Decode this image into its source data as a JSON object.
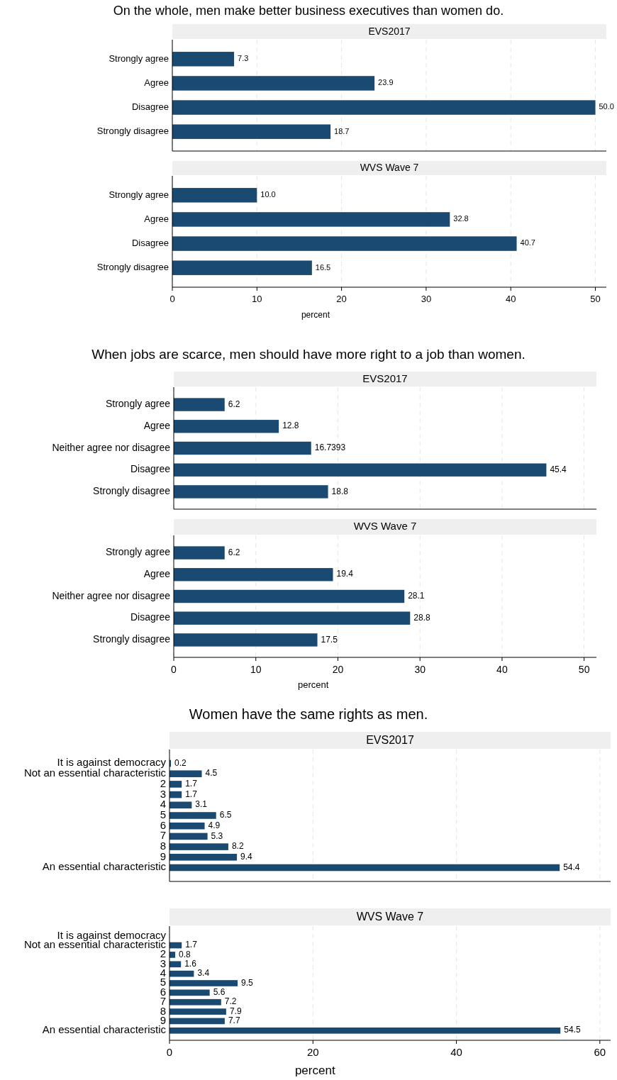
{
  "chart_data": [
    {
      "type": "bar",
      "orientation": "horizontal",
      "title": "On the whole, men make better business executives than women do.",
      "subtitle": "EVS2017",
      "categories": [
        "Strongly agree",
        "Agree",
        "Disagree",
        "Strongly disagree"
      ],
      "values": [
        7.3,
        23.9,
        50.0,
        18.7
      ],
      "value_labels": [
        "7.3",
        "23.9",
        "50.0",
        "18.7"
      ],
      "color": "#1a4a72",
      "xlim": [
        0,
        51.3
      ],
      "xticks": [
        0,
        10,
        20,
        30,
        40,
        50
      ],
      "grid": "x",
      "tick_labels": "y"
    },
    {
      "type": "bar",
      "orientation": "horizontal",
      "subtitle": "WVS Wave 7",
      "xlabel": "percent",
      "categories": [
        "Strongly agree",
        "Agree",
        "Disagree",
        "Strongly disagree"
      ],
      "values": [
        10.0,
        32.8,
        40.7,
        16.5
      ],
      "value_labels": [
        "10.0",
        "32.8",
        "40.7",
        "16.5"
      ],
      "color": "#1a4a72",
      "xlim": [
        0,
        51.3
      ],
      "xticks": [
        0,
        10,
        20,
        30,
        40,
        50
      ],
      "grid": "x"
    },
    {
      "type": "bar",
      "orientation": "horizontal",
      "title": "When jobs are scarce, men should have more right to a job than women.",
      "subtitle": "EVS2017",
      "categories": [
        "Strongly agree",
        "Agree",
        "Neither agree nor disagree",
        "Disagree",
        "Strongly disagree"
      ],
      "values": [
        6.2,
        12.8,
        16.7393,
        45.4,
        18.8
      ],
      "value_labels": [
        "6.2",
        "12.8",
        "16.7393",
        "45.4",
        "18.8"
      ],
      "color": "#1a4a72",
      "xlim": [
        0,
        51.5
      ],
      "xticks": [
        0,
        10,
        20,
        30,
        40,
        50
      ],
      "grid": "x",
      "tick_labels": "y"
    },
    {
      "type": "bar",
      "orientation": "horizontal",
      "subtitle": "WVS Wave 7",
      "xlabel": "percent",
      "categories": [
        "Strongly agree",
        "Agree",
        "Neither agree nor disagree",
        "Disagree",
        "Strongly disagree"
      ],
      "values": [
        6.2,
        19.4,
        28.1,
        28.8,
        17.5
      ],
      "value_labels": [
        "6.2",
        "19.4",
        "28.1",
        "28.8",
        "17.5"
      ],
      "color": "#1a4a72",
      "xlim": [
        0,
        51.5
      ],
      "xticks": [
        0,
        10,
        20,
        30,
        40,
        50
      ],
      "grid": "x"
    },
    {
      "type": "bar",
      "orientation": "horizontal",
      "title": "Women have the same rights as men.",
      "subtitle": "EVS2017",
      "categories": [
        "It is against democracy",
        "Not an essential characteristic",
        "2",
        "3",
        "4",
        "5",
        "6",
        "7",
        "8",
        "9",
        "An essential characteristic"
      ],
      "values": [
        0.2,
        4.5,
        1.7,
        1.7,
        3.1,
        6.5,
        4.9,
        5.3,
        8.2,
        9.4,
        54.4
      ],
      "value_labels": [
        "0.2",
        "4.5",
        "1.7",
        "1.7",
        "3.1",
        "6.5",
        "4.9",
        "5.3",
        "8.2",
        "9.4",
        "54.4"
      ],
      "color": "#1a4a72",
      "xlim": [
        0,
        61.5
      ],
      "xticks": [
        0,
        20,
        40,
        60
      ],
      "grid": "x",
      "tick_labels": "y"
    },
    {
      "type": "bar",
      "orientation": "horizontal",
      "subtitle": "WVS Wave 7",
      "xlabel": "percent",
      "categories": [
        "It is against democracy",
        "Not an essential characteristic",
        "2",
        "3",
        "4",
        "5",
        "6",
        "7",
        "8",
        "9",
        "An essential characteristic"
      ],
      "values": [
        null,
        1.7,
        0.8,
        1.6,
        3.4,
        9.5,
        5.6,
        7.2,
        7.9,
        7.7,
        54.5
      ],
      "value_labels": [
        null,
        "1.7",
        "0.8",
        "1.6",
        "3.4",
        "9.5",
        "5.6",
        "7.2",
        "7.9",
        "7.7",
        "54.5"
      ],
      "color": "#1a4a72",
      "xlim": [
        0,
        61.5
      ],
      "xticks": [
        0,
        20,
        40,
        60
      ],
      "grid": "x"
    }
  ]
}
